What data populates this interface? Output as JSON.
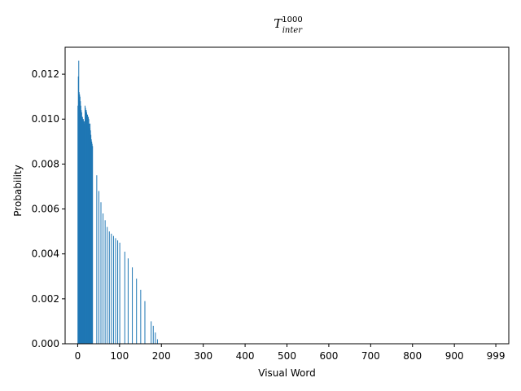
{
  "chart_data": {
    "type": "bar",
    "title": {
      "main": "T",
      "superscript": "1000",
      "subscript": "inter"
    },
    "xlabel": "Visual Word",
    "ylabel": "Probability",
    "xlim": [
      -30,
      1030
    ],
    "ylim": [
      0,
      0.0132
    ],
    "x_ticks": [
      0,
      100,
      200,
      300,
      400,
      500,
      600,
      700,
      800,
      900,
      999
    ],
    "y_ticks": [
      0.0,
      0.002,
      0.004,
      0.006,
      0.008,
      0.01,
      0.012
    ],
    "y_tick_labels": [
      "0.000",
      "0.002",
      "0.004",
      "0.006",
      "0.008",
      "0.010",
      "0.012"
    ],
    "bar_color": "#1f77b4",
    "grid": false,
    "x": [
      0,
      1,
      2,
      3,
      4,
      5,
      6,
      7,
      8,
      9,
      10,
      11,
      12,
      13,
      14,
      15,
      16,
      17,
      18,
      19,
      20,
      21,
      22,
      23,
      24,
      25,
      26,
      27,
      28,
      29,
      30,
      31,
      32,
      33,
      34,
      35,
      45,
      50,
      55,
      60,
      65,
      70,
      75,
      80,
      85,
      90,
      95,
      100,
      112,
      120,
      130,
      140,
      150,
      160,
      175,
      180,
      185,
      190,
      195
    ],
    "values": [
      0.0106,
      0.0119,
      0.0126,
      0.0112,
      0.0111,
      0.011,
      0.0108,
      0.0106,
      0.0104,
      0.0103,
      0.0101,
      0.0101,
      0.01,
      0.01,
      0.0099,
      0.0099,
      0.0098,
      0.0106,
      0.0105,
      0.0104,
      0.0104,
      0.0103,
      0.0102,
      0.0102,
      0.0101,
      0.0101,
      0.01,
      0.0098,
      0.0096,
      0.0098,
      0.0095,
      0.0093,
      0.0091,
      0.009,
      0.0089,
      0.0088,
      0.0075,
      0.0068,
      0.0063,
      0.0058,
      0.0055,
      0.0052,
      0.005,
      0.0049,
      0.0048,
      0.0047,
      0.0046,
      0.0045,
      0.0041,
      0.0038,
      0.0034,
      0.0029,
      0.0024,
      0.0019,
      0.001,
      0.0008,
      0.0005,
      0.0002,
      0.0
    ],
    "series_shape": "decreasing histogram with step drops, zero for visual words beyond ~200"
  }
}
